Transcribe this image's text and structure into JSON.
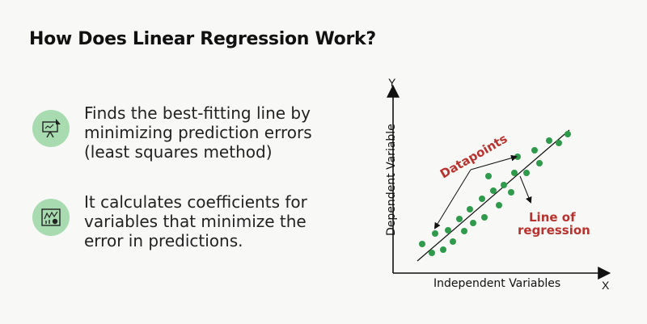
{
  "title": "How Does Linear Regression Work?",
  "points": [
    {
      "icon": "presentation-chart-icon",
      "lines": [
        "Finds the best-fitting line by",
        "minimizing prediction errors",
        "(least squares method)"
      ]
    },
    {
      "icon": "analytics-chart-icon",
      "lines": [
        "It calculates coefficients for",
        "variables that minimize the",
        "error in predictions."
      ]
    }
  ],
  "diagram": {
    "y_axis_letter": "Y",
    "x_axis_letter": "X",
    "y_axis_label": "Dependent Variable",
    "x_axis_label": "Independent Variables",
    "datapoints_label": "Datapoints",
    "regression_label_line1": "Line of",
    "regression_label_line2": "regression",
    "point_color": "#2f9a4c",
    "label_color": "#b8332f"
  }
}
